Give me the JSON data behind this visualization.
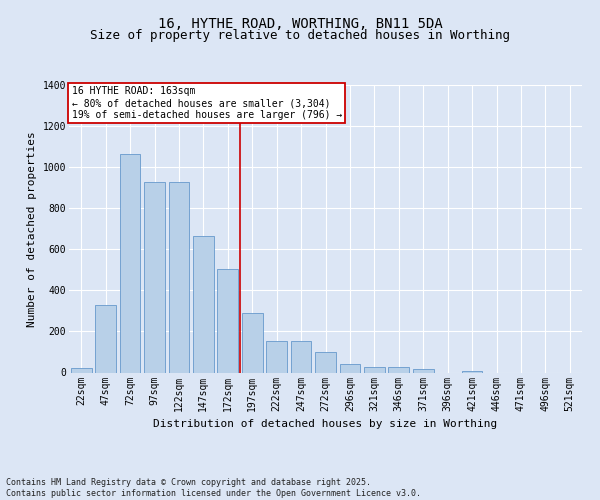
{
  "title": "16, HYTHE ROAD, WORTHING, BN11 5DA",
  "subtitle": "Size of property relative to detached houses in Worthing",
  "xlabel": "Distribution of detached houses by size in Worthing",
  "ylabel": "Number of detached properties",
  "categories": [
    "22sqm",
    "47sqm",
    "72sqm",
    "97sqm",
    "122sqm",
    "147sqm",
    "172sqm",
    "197sqm",
    "222sqm",
    "247sqm",
    "272sqm",
    "296sqm",
    "321sqm",
    "346sqm",
    "371sqm",
    "396sqm",
    "421sqm",
    "446sqm",
    "471sqm",
    "496sqm",
    "521sqm"
  ],
  "values": [
    20,
    330,
    1065,
    930,
    930,
    665,
    505,
    290,
    155,
    155,
    100,
    40,
    25,
    25,
    18,
    0,
    8,
    0,
    0,
    0,
    0
  ],
  "bar_color": "#b8d0e8",
  "bar_edge_color": "#6699cc",
  "annotation_text": "16 HYTHE ROAD: 163sqm\n← 80% of detached houses are smaller (3,304)\n19% of semi-detached houses are larger (796) →",
  "annotation_box_color": "#ffffff",
  "annotation_box_edge": "#cc0000",
  "red_line_color": "#cc0000",
  "background_color": "#dce6f5",
  "plot_bg_color": "#dce6f5",
  "grid_color": "#ffffff",
  "ylim": [
    0,
    1400
  ],
  "yticks": [
    0,
    200,
    400,
    600,
    800,
    1000,
    1200,
    1400
  ],
  "red_line_x": 6.5,
  "footer_text": "Contains HM Land Registry data © Crown copyright and database right 2025.\nContains public sector information licensed under the Open Government Licence v3.0.",
  "title_fontsize": 10,
  "subtitle_fontsize": 9,
  "tick_fontsize": 7,
  "label_fontsize": 8,
  "annotation_fontsize": 7,
  "footer_fontsize": 6
}
